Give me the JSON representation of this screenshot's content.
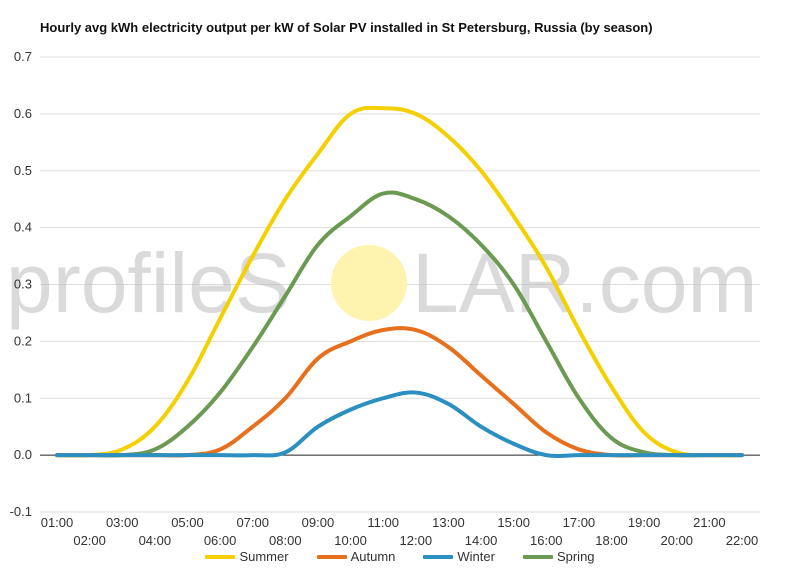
{
  "chart_data": {
    "type": "line",
    "title": "Hourly avg kWh electricity output per kW of Solar PV installed in St Petersburg, Russia (by season)",
    "xlabel": "",
    "ylabel": "",
    "ylim": [
      -0.1,
      0.7
    ],
    "yticks": [
      "-0.1",
      "0.0",
      "0.1",
      "0.2",
      "0.3",
      "0.4",
      "0.5",
      "0.6",
      "0.7"
    ],
    "categories": [
      "01:00",
      "02:00",
      "03:00",
      "04:00",
      "05:00",
      "06:00",
      "07:00",
      "08:00",
      "09:00",
      "10:00",
      "11:00",
      "12:00",
      "13:00",
      "14:00",
      "15:00",
      "16:00",
      "17:00",
      "18:00",
      "19:00",
      "20:00",
      "21:00",
      "22:00"
    ],
    "series": [
      {
        "name": "Summer",
        "color": "#f5d000",
        "values": [
          0.0,
          0.0,
          0.01,
          0.05,
          0.13,
          0.24,
          0.35,
          0.45,
          0.53,
          0.6,
          0.61,
          0.6,
          0.56,
          0.5,
          0.42,
          0.33,
          0.22,
          0.12,
          0.04,
          0.005,
          0.0,
          0.0
        ]
      },
      {
        "name": "Autumn",
        "color": "#e86f1c",
        "values": [
          0.0,
          0.0,
          0.0,
          0.0,
          0.0,
          0.01,
          0.05,
          0.1,
          0.17,
          0.2,
          0.22,
          0.22,
          0.19,
          0.14,
          0.09,
          0.04,
          0.01,
          0.0,
          0.0,
          0.0,
          0.0,
          0.0
        ]
      },
      {
        "name": "Winter",
        "color": "#2b8fc2",
        "values": [
          0.0,
          0.0,
          0.0,
          0.0,
          0.0,
          0.0,
          0.0,
          0.005,
          0.05,
          0.08,
          0.1,
          0.11,
          0.09,
          0.05,
          0.02,
          0.0,
          0.0,
          0.0,
          0.0,
          0.0,
          0.0,
          0.0
        ]
      },
      {
        "name": "Spring",
        "color": "#6b9a52",
        "values": [
          0.0,
          0.0,
          0.0,
          0.01,
          0.05,
          0.11,
          0.19,
          0.28,
          0.37,
          0.42,
          0.46,
          0.45,
          0.42,
          0.37,
          0.3,
          0.2,
          0.1,
          0.03,
          0.005,
          0.0,
          0.0,
          0.0
        ]
      }
    ],
    "grid": true,
    "legend": "bottom"
  },
  "watermark": {
    "left": "profileS",
    "right": "LAR.com"
  },
  "colors": {
    "grid": "#dddddd",
    "zero_line": "#222222",
    "watermark_sun": "#fff3b0"
  }
}
